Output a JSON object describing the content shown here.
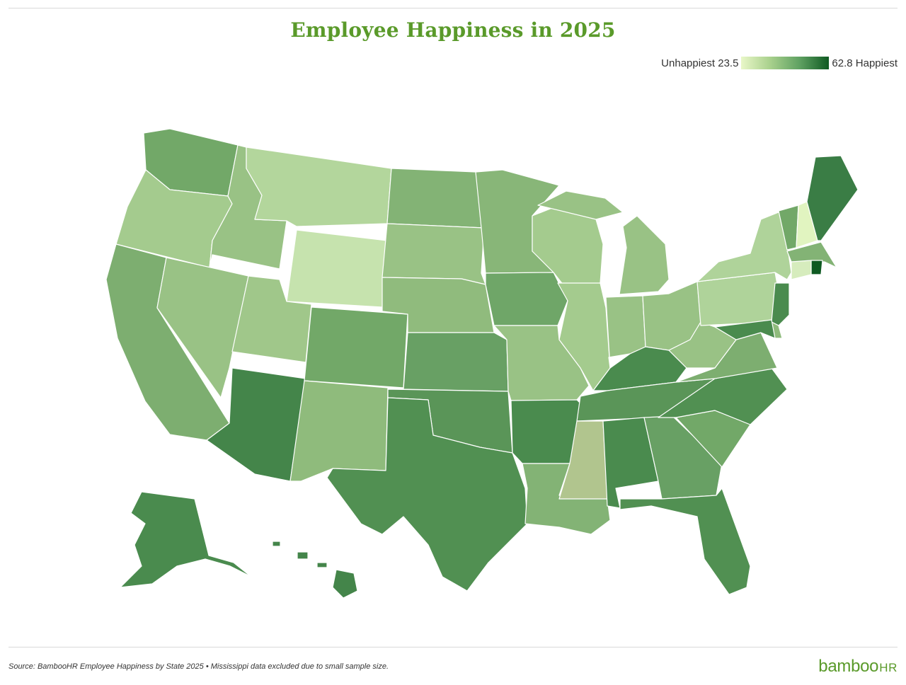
{
  "title": "Employee Happiness in 2025",
  "legend": {
    "min_text": "Unhappiest 23.5",
    "max_text": "62.8 Happiest",
    "min": 23.5,
    "max": 62.8,
    "colors": [
      "#e9f7c8",
      "#a8d08c",
      "#5fa162",
      "#0f5a22"
    ]
  },
  "states": [
    {
      "id": "WA",
      "color": "#72a868"
    },
    {
      "id": "OR",
      "color": "#a4cb8e"
    },
    {
      "id": "CA",
      "color": "#7dae70"
    },
    {
      "id": "ID",
      "color": "#99c285"
    },
    {
      "id": "NV",
      "color": "#99c285"
    },
    {
      "id": "MT",
      "color": "#b3d69c"
    },
    {
      "id": "WY",
      "color": "#c6e3ae"
    },
    {
      "id": "UT",
      "color": "#a0c78a"
    },
    {
      "id": "AZ",
      "color": "#44854a"
    },
    {
      "id": "CO",
      "color": "#72a868"
    },
    {
      "id": "NM",
      "color": "#8fbb7c"
    },
    {
      "id": "ND",
      "color": "#83b375"
    },
    {
      "id": "SD",
      "color": "#99c285"
    },
    {
      "id": "NE",
      "color": "#90bb7d"
    },
    {
      "id": "KS",
      "color": "#68a064"
    },
    {
      "id": "OK",
      "color": "#5a9558"
    },
    {
      "id": "TX",
      "color": "#519052"
    },
    {
      "id": "MN",
      "color": "#88b678"
    },
    {
      "id": "IA",
      "color": "#6fa668"
    },
    {
      "id": "MO",
      "color": "#99c285"
    },
    {
      "id": "AR",
      "color": "#4a8b4e"
    },
    {
      "id": "LA",
      "color": "#83b375"
    },
    {
      "id": "WI",
      "color": "#a4cb8e"
    },
    {
      "id": "IL",
      "color": "#a4cb8e"
    },
    {
      "id": "MI",
      "color": "#99c285"
    },
    {
      "id": "IN",
      "color": "#99c285"
    },
    {
      "id": "OH",
      "color": "#99c285"
    },
    {
      "id": "KY",
      "color": "#4a8b4e"
    },
    {
      "id": "TN",
      "color": "#5a9558"
    },
    {
      "id": "MS",
      "color": "#b1c58e"
    },
    {
      "id": "AL",
      "color": "#4a8b4e"
    },
    {
      "id": "GA",
      "color": "#68a064"
    },
    {
      "id": "FL",
      "color": "#519052"
    },
    {
      "id": "SC",
      "color": "#72a868"
    },
    {
      "id": "NC",
      "color": "#519052"
    },
    {
      "id": "VA",
      "color": "#7dae70"
    },
    {
      "id": "WV",
      "color": "#99c285"
    },
    {
      "id": "PA",
      "color": "#afd39a"
    },
    {
      "id": "NY",
      "color": "#afd39a"
    },
    {
      "id": "VT",
      "color": "#72a868"
    },
    {
      "id": "NH",
      "color": "#e1f4c0"
    },
    {
      "id": "ME",
      "color": "#3a7d45"
    },
    {
      "id": "MA",
      "color": "#83b375"
    },
    {
      "id": "RI",
      "color": "#0f5a22"
    },
    {
      "id": "CT",
      "color": "#d6ecbd"
    },
    {
      "id": "NJ",
      "color": "#4a8b4e"
    },
    {
      "id": "DE",
      "color": "#8fbb7c"
    },
    {
      "id": "MD",
      "color": "#4a8b4e"
    },
    {
      "id": "AK",
      "color": "#4a8b4e"
    },
    {
      "id": "HI",
      "color": "#44854a"
    }
  ],
  "source": "Source: BambooHR Employee Happiness by State 2025 • Mississippi data excluded due to small sample size.",
  "logo": {
    "text": "bamboo",
    "suffix": "HR"
  }
}
